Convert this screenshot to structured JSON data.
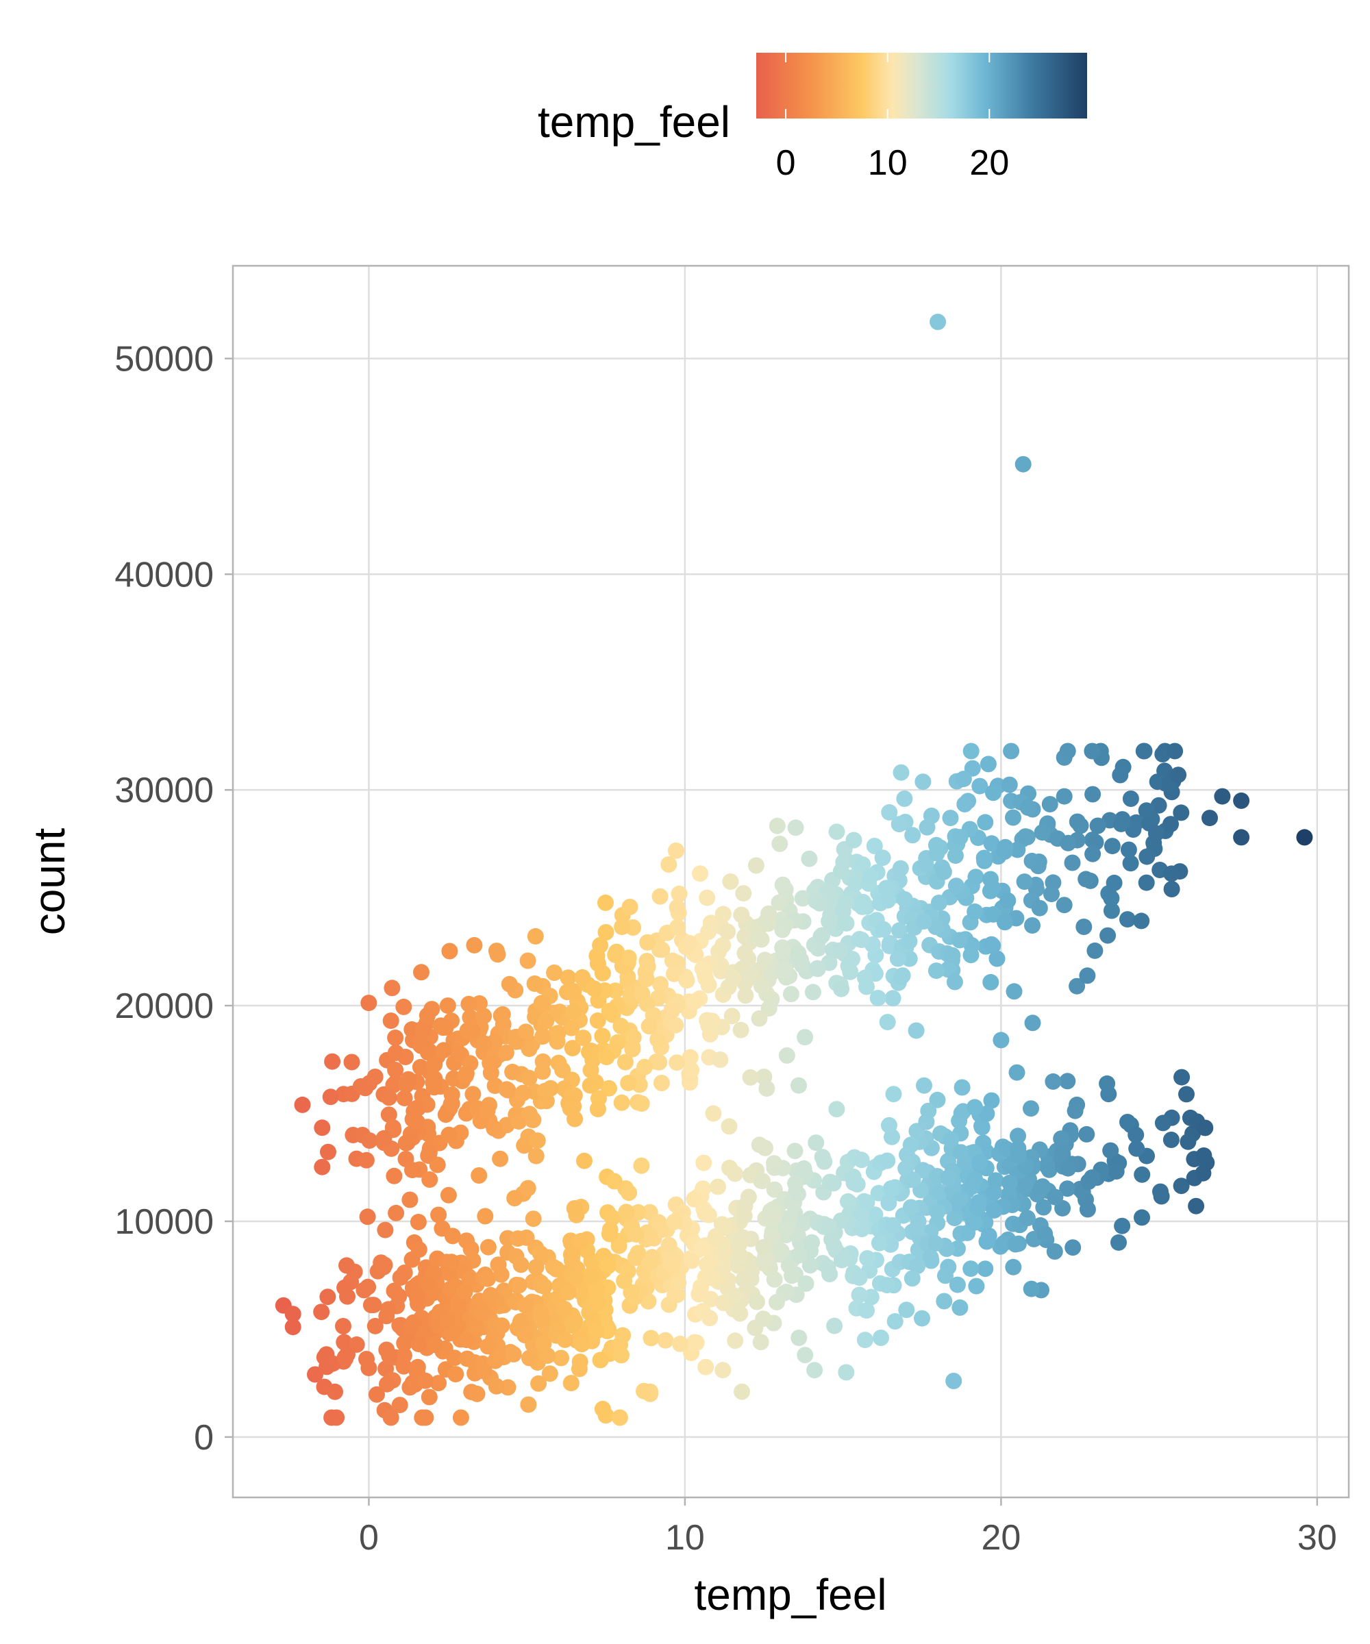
{
  "chart_data": {
    "type": "scatter",
    "title": "",
    "xlabel": "temp_feel",
    "ylabel": "count",
    "xlim": [
      -4.3,
      31
    ],
    "ylim": [
      -2800,
      54300
    ],
    "x_ticks": [
      0,
      10,
      20,
      30
    ],
    "y_ticks": [
      0,
      10000,
      20000,
      30000,
      40000,
      50000
    ],
    "x_tick_labels": [
      "0",
      "10",
      "20",
      "30"
    ],
    "y_tick_labels": [
      "0",
      "10000",
      "20000",
      "30000",
      "40000",
      "50000"
    ],
    "grid": true,
    "legend": {
      "title": "temp_feel",
      "placement": "top",
      "type": "colorbar",
      "range": [
        -2.9,
        29.6
      ],
      "ticks": [
        0,
        10,
        20
      ],
      "tick_labels": [
        "0",
        "10",
        "20"
      ]
    },
    "color_scale": {
      "stops": [
        {
          "value": -2.9,
          "color": "#e8604c"
        },
        {
          "value": 2.5,
          "color": "#f5934a"
        },
        {
          "value": 7.5,
          "color": "#fdc964"
        },
        {
          "value": 10.5,
          "color": "#fde6b0"
        },
        {
          "value": 13.0,
          "color": "#d9e5d1"
        },
        {
          "value": 16.0,
          "color": "#a8dce4"
        },
        {
          "value": 19.5,
          "color": "#6fb8d4"
        },
        {
          "value": 24.0,
          "color": "#3f7ca3"
        },
        {
          "value": 29.6,
          "color": "#1e3f66"
        }
      ]
    },
    "point_generation": {
      "count": 1600,
      "seed": 42
    },
    "points": [
      [
        18.0,
        51700
      ],
      [
        20.7,
        45100
      ],
      [
        29.6,
        27800
      ],
      [
        27.6,
        29500
      ],
      [
        27.6,
        27800
      ],
      [
        27.0,
        29700
      ],
      [
        26.6,
        28700
      ],
      [
        25.4,
        29900
      ],
      [
        25.2,
        30300
      ],
      [
        25.2,
        28100
      ],
      [
        25.4,
        25400
      ],
      [
        25.4,
        14800
      ],
      [
        22.0,
        31500
      ],
      [
        19.6,
        31200
      ],
      [
        19.1,
        31000
      ],
      [
        18.6,
        30400
      ],
      [
        22.4,
        20900
      ],
      [
        21.7,
        8600
      ],
      [
        18.5,
        2600
      ],
      [
        -2.1,
        15400
      ],
      [
        -2.7,
        6100
      ],
      [
        -2.4,
        5700
      ],
      [
        -2.4,
        5100
      ],
      [
        -1.7,
        2900
      ],
      [
        0.7,
        19300
      ],
      [
        13.0,
        27500
      ],
      [
        10.7,
        25000
      ],
      [
        9.8,
        24300
      ],
      [
        7.5,
        23400
      ],
      [
        5.5,
        20900
      ],
      [
        2.5,
        20000
      ],
      [
        3.5,
        20100
      ],
      [
        7.5,
        1000
      ],
      [
        7.4,
        1300
      ],
      [
        8.9,
        2000
      ],
      [
        11.8,
        2100
      ],
      [
        14.1,
        3100
      ],
      [
        15.1,
        3000
      ],
      [
        23.4,
        15900
      ],
      [
        23.4,
        12200
      ],
      [
        23.6,
        12800
      ],
      [
        22.1,
        16500
      ],
      [
        22.2,
        14000
      ],
      [
        22.4,
        15400
      ],
      [
        24.0,
        24000
      ],
      [
        24.1,
        26600
      ],
      [
        24.6,
        25700
      ],
      [
        23.5,
        24400
      ],
      [
        23.4,
        25200
      ],
      [
        22.0,
        29700
      ],
      [
        21.0,
        29100
      ],
      [
        19.5,
        28500
      ],
      [
        18.4,
        28700
      ],
      [
        17.8,
        28800
      ],
      [
        17.2,
        27900
      ],
      [
        16.0,
        27400
      ],
      [
        15.4,
        26000
      ],
      [
        14.2,
        25500
      ],
      [
        12.4,
        23700
      ],
      [
        11.2,
        22800
      ],
      [
        9.2,
        22600
      ],
      [
        8.2,
        22000
      ],
      [
        7.4,
        21500
      ],
      [
        6.6,
        20200
      ],
      [
        6.1,
        19500
      ],
      [
        4.1,
        18700
      ],
      [
        1.4,
        18400
      ],
      [
        0.2,
        16700
      ],
      [
        -0.8,
        15900
      ],
      [
        -0.5,
        14000
      ],
      [
        -1.3,
        6500
      ],
      [
        -1.5,
        5800
      ],
      [
        -0.8,
        3500
      ],
      [
        -1.4,
        3700
      ],
      [
        0.0,
        3200
      ],
      [
        1.3,
        2300
      ],
      [
        2.2,
        2500
      ],
      [
        4.4,
        2300
      ],
      [
        6.4,
        2500
      ],
      [
        8.9,
        2100
      ],
      [
        10.2,
        3900
      ],
      [
        11.2,
        3100
      ],
      [
        12.4,
        4400
      ],
      [
        13.8,
        3800
      ],
      [
        15.7,
        4500
      ],
      [
        16.2,
        4600
      ],
      [
        17.5,
        5500
      ],
      [
        18.2,
        6300
      ],
      [
        18.7,
        6000
      ],
      [
        19.5,
        7800
      ],
      [
        20.7,
        10800
      ],
      [
        21.3,
        11600
      ],
      [
        22.5,
        11500
      ],
      [
        21.5,
        13000
      ],
      [
        20.5,
        16900
      ],
      [
        21.0,
        19200
      ],
      [
        20.0,
        18400
      ],
      [
        19.7,
        15600
      ],
      [
        18.8,
        15100
      ],
      [
        17.8,
        13400
      ],
      [
        16.6,
        15900
      ],
      [
        14.8,
        15200
      ],
      [
        13.6,
        16300
      ],
      [
        12.5,
        16700
      ],
      [
        11.4,
        14400
      ],
      [
        10.9,
        15000
      ],
      [
        9.1,
        17400
      ],
      [
        8.0,
        15500
      ],
      [
        6.3,
        16000
      ],
      [
        5.2,
        14700
      ],
      [
        4.1,
        14200
      ],
      [
        2.8,
        14000
      ],
      [
        1.6,
        12400
      ],
      [
        1.3,
        11000
      ],
      [
        0.8,
        12100
      ]
    ]
  }
}
